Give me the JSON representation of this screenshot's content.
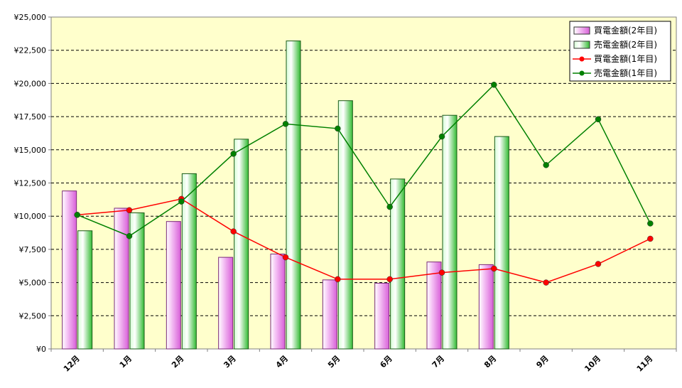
{
  "chart_data": {
    "type": "bar",
    "categories": [
      "12月",
      "1月",
      "2月",
      "3月",
      "4月",
      "5月",
      "6月",
      "7月",
      "8月",
      "9月",
      "10月",
      "11月"
    ],
    "ylim": [
      0,
      25000
    ],
    "yticks": [
      0,
      2500,
      5000,
      7500,
      10000,
      12500,
      15000,
      17500,
      20000,
      22500,
      25000
    ],
    "ytick_labels": [
      "¥0",
      "¥2,500",
      "¥5,000",
      "¥7,500",
      "¥10,000",
      "¥12,500",
      "¥15,000",
      "¥17,500",
      "¥20,000",
      "¥22,500",
      "¥25,000"
    ],
    "grid": "horizontal dashed",
    "legend_position": "top-right",
    "series": [
      {
        "name": "買電金額(2年目)",
        "kind": "bar",
        "color": "#ee88ee",
        "values": [
          11900,
          10600,
          9600,
          6900,
          7150,
          5200,
          4950,
          6550,
          6350,
          null,
          null,
          null
        ]
      },
      {
        "name": "売電金額(2年目)",
        "kind": "bar",
        "color": "#55dd55",
        "values": [
          8900,
          10250,
          13200,
          15800,
          23200,
          18700,
          12800,
          17600,
          16000,
          null,
          null,
          null
        ]
      },
      {
        "name": "買電金額(1年目)",
        "kind": "line",
        "color": "#ff0000",
        "values": [
          10100,
          10450,
          11300,
          8850,
          6900,
          5250,
          5250,
          5750,
          6050,
          5000,
          6400,
          8300
        ]
      },
      {
        "name": "売電金額(1年目)",
        "kind": "line",
        "color": "#008000",
        "values": [
          10100,
          8500,
          11100,
          14700,
          16950,
          16600,
          10700,
          16000,
          19900,
          13850,
          17300,
          9450
        ]
      }
    ]
  }
}
